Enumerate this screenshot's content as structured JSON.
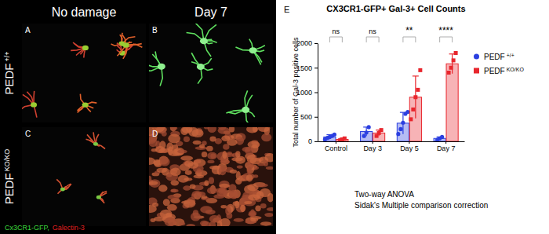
{
  "figure": {
    "column_titles": [
      "No damage",
      "Day 7"
    ],
    "row_titles": [
      "PEDF +/+",
      "PEDF KO/KO"
    ],
    "panel_letters": [
      "A",
      "B",
      "C",
      "D"
    ],
    "stain_legend": [
      {
        "text": "Cx3CR1-GFP,",
        "color": "#3ddc3d"
      },
      {
        "text": "Galectin-3",
        "color": "#e02020"
      }
    ],
    "chart_letter": "E",
    "notes": [
      "Two-way ANOVA",
      "Sidak's Multiple comparison correction"
    ]
  },
  "chart_data": {
    "type": "bar",
    "title": "CX3CR1-GFP+ Gal-3+ Cell Counts",
    "ylabel": "Total number of Gal-3 positive cells",
    "categories": [
      "Control",
      "Day 3",
      "Day 5",
      "Day 7"
    ],
    "series": [
      {
        "name": "PEDF +/+",
        "color": "#2b3fe0",
        "marker": "circle",
        "values": [
          90,
          200,
          370,
          60
        ],
        "errors": [
          45,
          90,
          220,
          30
        ],
        "points": [
          [
            40,
            70,
            90,
            110,
            140
          ],
          [
            110,
            180,
            290
          ],
          [
            150,
            250,
            380,
            560,
            600
          ],
          [
            30,
            60,
            90
          ]
        ]
      },
      {
        "name": "PEDF KO/KO",
        "color": "#e8262d",
        "marker": "square",
        "values": [
          40,
          170,
          900,
          1580
        ],
        "errors": [
          20,
          60,
          430,
          200
        ],
        "points": [
          [
            20,
            40,
            60
          ],
          [
            110,
            170,
            230
          ],
          [
            450,
            650,
            900,
            1050,
            1450
          ],
          [
            1400,
            1500,
            1650,
            1800
          ]
        ]
      }
    ],
    "ylim": [
      0,
      2000
    ],
    "yticks": [
      0,
      500,
      1000,
      1500,
      2000
    ],
    "annotations": [
      "ns",
      "ns",
      "**",
      "****"
    ],
    "legend": "right"
  }
}
